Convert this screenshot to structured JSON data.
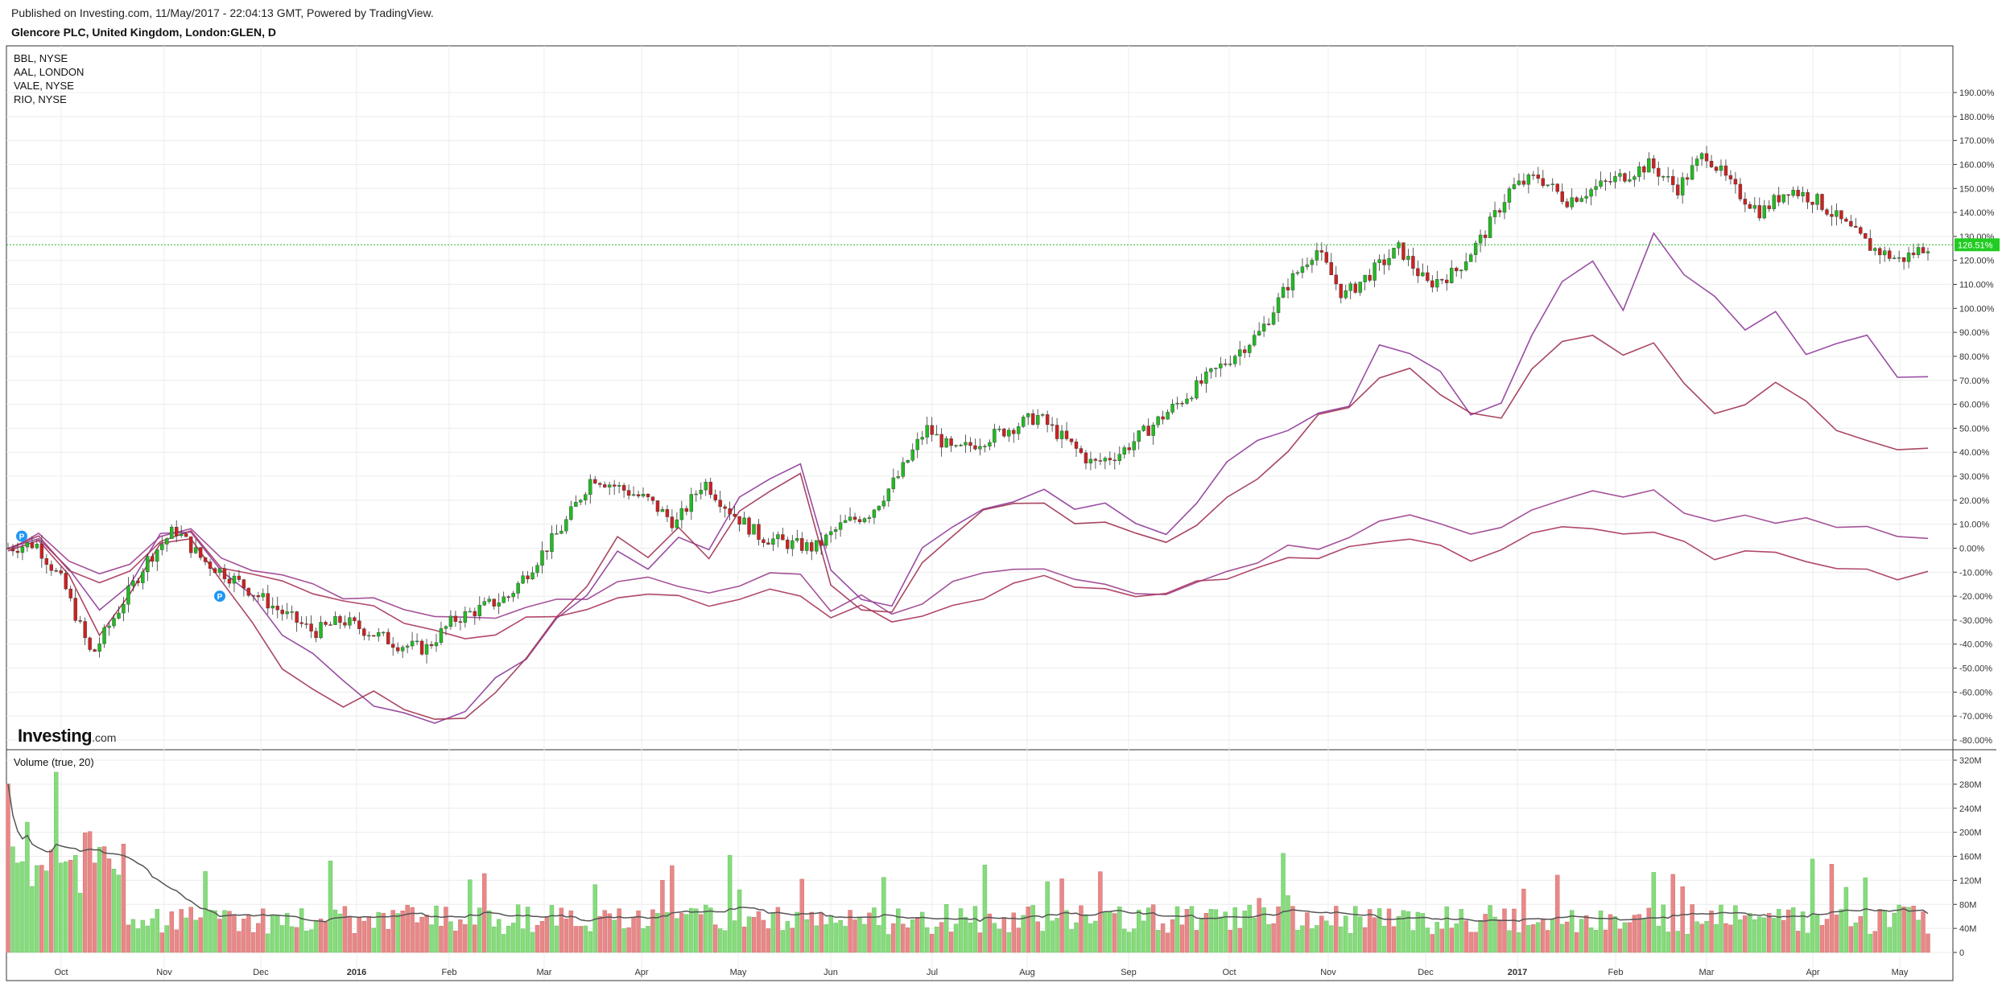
{
  "header": {
    "published": "Published on Investing.com, 11/May/2017 - 22:04:13 GMT, Powered by TradingView.",
    "title": "Glencore PLC, United Kingdom, London:GLEN, D"
  },
  "legend": [
    "BBL, NYSE",
    "AAL, LONDON",
    "VALE, NYSE",
    "RIO, NYSE"
  ],
  "volume_title": "Volume (true, 20)",
  "logo": {
    "main": "Investing",
    "suffix": ".com"
  },
  "price_badge": "126.51%",
  "colors": {
    "up": "#22bb22",
    "down": "#cc2222",
    "vol_up": "#86dc7a",
    "vol_down": "#e88888",
    "comparison_series": [
      "#8e3a9a",
      "#a0324f",
      "#9b3f8f",
      "#a8345a"
    ],
    "volume_ma": "#555555",
    "badge": "#22cc22"
  },
  "chart_data": [
    {
      "type": "candlestick",
      "name": "GLEN",
      "x_ticks": [
        "Oct",
        "Nov",
        "Dec",
        "2016",
        "Feb",
        "Mar",
        "Apr",
        "May",
        "Jun",
        "Jul",
        "Aug",
        "Sep",
        "Oct",
        "Nov",
        "Dec",
        "2017",
        "Feb",
        "Mar",
        "Apr",
        "May"
      ],
      "y_ticks": [
        "190.00%",
        "180.00%",
        "170.00%",
        "160.00%",
        "150.00%",
        "140.00%",
        "130.00%",
        "120.00%",
        "110.00%",
        "100.00%",
        "90.00%",
        "80.00%",
        "70.00%",
        "60.00%",
        "50.00%",
        "40.00%",
        "30.00%",
        "20.00%",
        "10.00%",
        "0.00%",
        "-10.00%",
        "-20.00%",
        "-30.00%",
        "-40.00%",
        "-50.00%",
        "-60.00%",
        "-70.00%",
        "-80.00%"
      ],
      "y_range": [
        -80,
        190
      ],
      "y_unit": "%",
      "last_value": 126.51,
      "glen_path_pct": [
        0,
        2,
        -15,
        -45,
        -25,
        -5,
        8,
        -5,
        -12,
        -20,
        -28,
        -35,
        -30,
        -35,
        -40,
        -42,
        -30,
        -25,
        -20,
        -5,
        10,
        30,
        25,
        20,
        10,
        28,
        15,
        5,
        2,
        0,
        10,
        15,
        30,
        50,
        40,
        45,
        50,
        55,
        45,
        35,
        40,
        50,
        60,
        70,
        80,
        90,
        110,
        125,
        105,
        115,
        125,
        110,
        115,
        130,
        150,
        155,
        145,
        150,
        155,
        160,
        150,
        165,
        150,
        140,
        150,
        145,
        135,
        125,
        120,
        126.51
      ],
      "comparison_series": [
        {
          "name": "BBL, NYSE",
          "values": [
            0,
            5,
            -10,
            -25,
            -15,
            5,
            8,
            -10,
            -20,
            -35,
            -45,
            -55,
            -65,
            -70,
            -72,
            -68,
            -55,
            -45,
            -30,
            -20,
            0,
            -10,
            5,
            0,
            20,
            30,
            35,
            -10,
            -20,
            -25,
            0,
            10,
            15,
            20,
            25,
            15,
            20,
            10,
            5,
            20,
            35,
            45,
            50,
            55,
            60,
            85,
            80,
            75,
            55,
            60,
            90,
            110,
            120,
            100,
            130,
            115,
            105,
            90,
            100,
            80,
            85,
            90,
            70,
            72
          ]
        },
        {
          "name": "AAL, LONDON",
          "values": [
            0,
            3,
            -12,
            -35,
            -20,
            2,
            5,
            -15,
            -30,
            -50,
            -60,
            -65,
            -60,
            -68,
            -70,
            -72,
            -60,
            -45,
            -30,
            -15,
            5,
            -5,
            10,
            -5,
            15,
            25,
            30,
            -15,
            -25,
            -28,
            -5,
            5,
            15,
            20,
            18,
            10,
            12,
            5,
            3,
            10,
            20,
            30,
            40,
            55,
            60,
            70,
            75,
            65,
            55,
            55,
            75,
            85,
            90,
            80,
            85,
            70,
            55,
            60,
            70,
            60,
            50,
            45,
            40,
            43
          ]
        },
        {
          "name": "VALE, NYSE",
          "values": [
            0,
            5,
            -5,
            -10,
            -8,
            6,
            8,
            -5,
            -8,
            -12,
            -15,
            -20,
            -22,
            -25,
            -28,
            -30,
            -28,
            -25,
            -22,
            -20,
            -15,
            -12,
            -15,
            -20,
            -15,
            -10,
            -12,
            -25,
            -20,
            -28,
            -22,
            -15,
            -10,
            -8,
            -10,
            -12,
            -15,
            -20,
            -18,
            -15,
            -10,
            -5,
            0,
            0,
            5,
            10,
            15,
            10,
            5,
            10,
            15,
            20,
            25,
            20,
            25,
            15,
            10,
            15,
            10,
            12,
            10,
            8,
            5,
            5
          ]
        },
        {
          "name": "RIO, NYSE",
          "values": [
            0,
            4,
            -8,
            -15,
            -10,
            4,
            6,
            -8,
            -10,
            -15,
            -18,
            -22,
            -25,
            -30,
            -35,
            -38,
            -35,
            -30,
            -28,
            -25,
            -22,
            -18,
            -20,
            -25,
            -20,
            -18,
            -20,
            -28,
            -25,
            -30,
            -28,
            -25,
            -20,
            -15,
            -12,
            -15,
            -18,
            -20,
            -18,
            -15,
            -12,
            -8,
            -5,
            -3,
            0,
            2,
            5,
            0,
            -5,
            0,
            5,
            10,
            8,
            5,
            8,
            2,
            -5,
            0,
            -3,
            -5,
            -8,
            -10,
            -12,
            -10
          ]
        }
      ]
    },
    {
      "type": "bar",
      "name": "Volume (true, 20)",
      "y_ticks": [
        "320M",
        "280M",
        "240M",
        "200M",
        "160M",
        "120M",
        "80M",
        "40M",
        "0"
      ],
      "y_range": [
        0,
        320
      ],
      "y_unit": "M",
      "moving_average_period": 20
    }
  ]
}
